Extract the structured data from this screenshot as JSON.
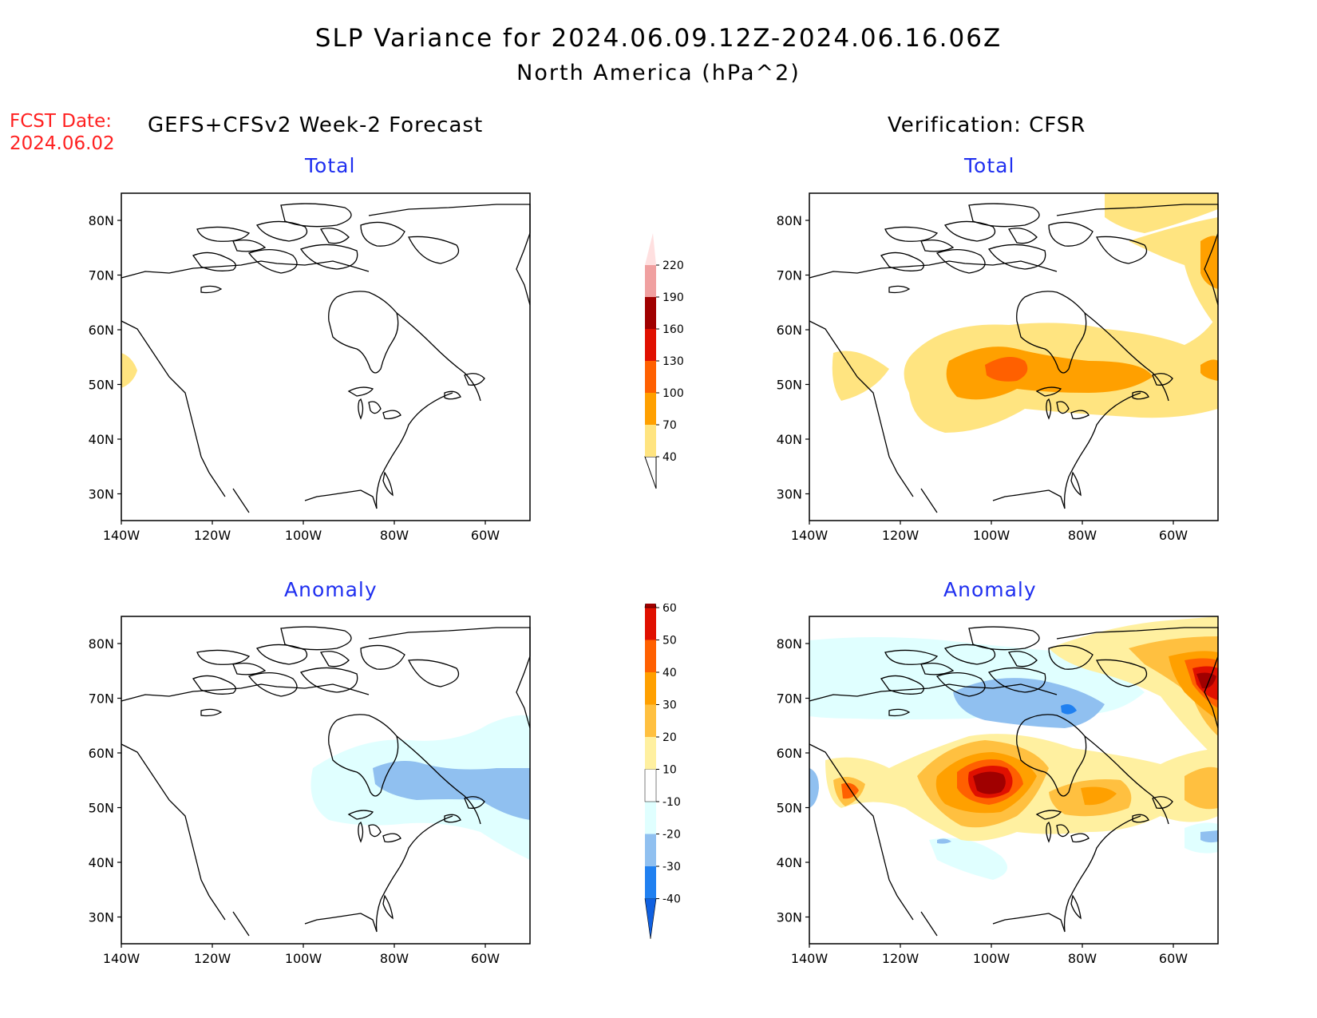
{
  "header": {
    "title": "SLP Variance for 2024.06.09.12Z-2024.06.16.06Z",
    "subtitle": "North America (hPa^2)",
    "fcst_date_label": "FCST Date:",
    "fcst_date": "2024.06.02",
    "left_column": "GEFS+CFSv2 Week-2 Forecast",
    "right_column": "Verification: CFSR"
  },
  "panels": {
    "forecast_total": {
      "title": "Total",
      "max_value_region": "40-70 near 50N 140W"
    },
    "verification_total": {
      "title": "Total",
      "max_value_region": "100-130 near 55N 95W"
    },
    "forecast_anomaly": {
      "title": "Anomaly",
      "min_value_region": "-20 to -30 near 55N 80W"
    },
    "verification_anomaly": {
      "title": "Anomaly",
      "max_value_region": ">60 near 55N 97W"
    }
  },
  "axes": {
    "lon_labels": [
      "140W",
      "120W",
      "100W",
      "80W",
      "60W"
    ],
    "lat_labels": [
      "80N",
      "70N",
      "60N",
      "50N",
      "40N",
      "30N"
    ]
  },
  "colorbars": {
    "total": {
      "labels": [
        "40",
        "70",
        "100",
        "130",
        "160",
        "190",
        "220"
      ],
      "colors": [
        "#ffe480",
        "#ffa000",
        "#ff6000",
        "#e01000",
        "#a00000",
        "#f0a0a0",
        "#ffe0e0"
      ]
    },
    "anomaly": {
      "labels": [
        "-40",
        "-30",
        "-20",
        "-10",
        "10",
        "20",
        "30",
        "40",
        "50",
        "60"
      ],
      "colors": [
        "#1060e0",
        "#2080f0",
        "#90c0f0",
        "#e0ffff",
        "#ffffff",
        "#fff0a0",
        "#ffc040",
        "#ffa000",
        "#ff6000",
        "#e01000",
        "#a00000"
      ]
    }
  }
}
